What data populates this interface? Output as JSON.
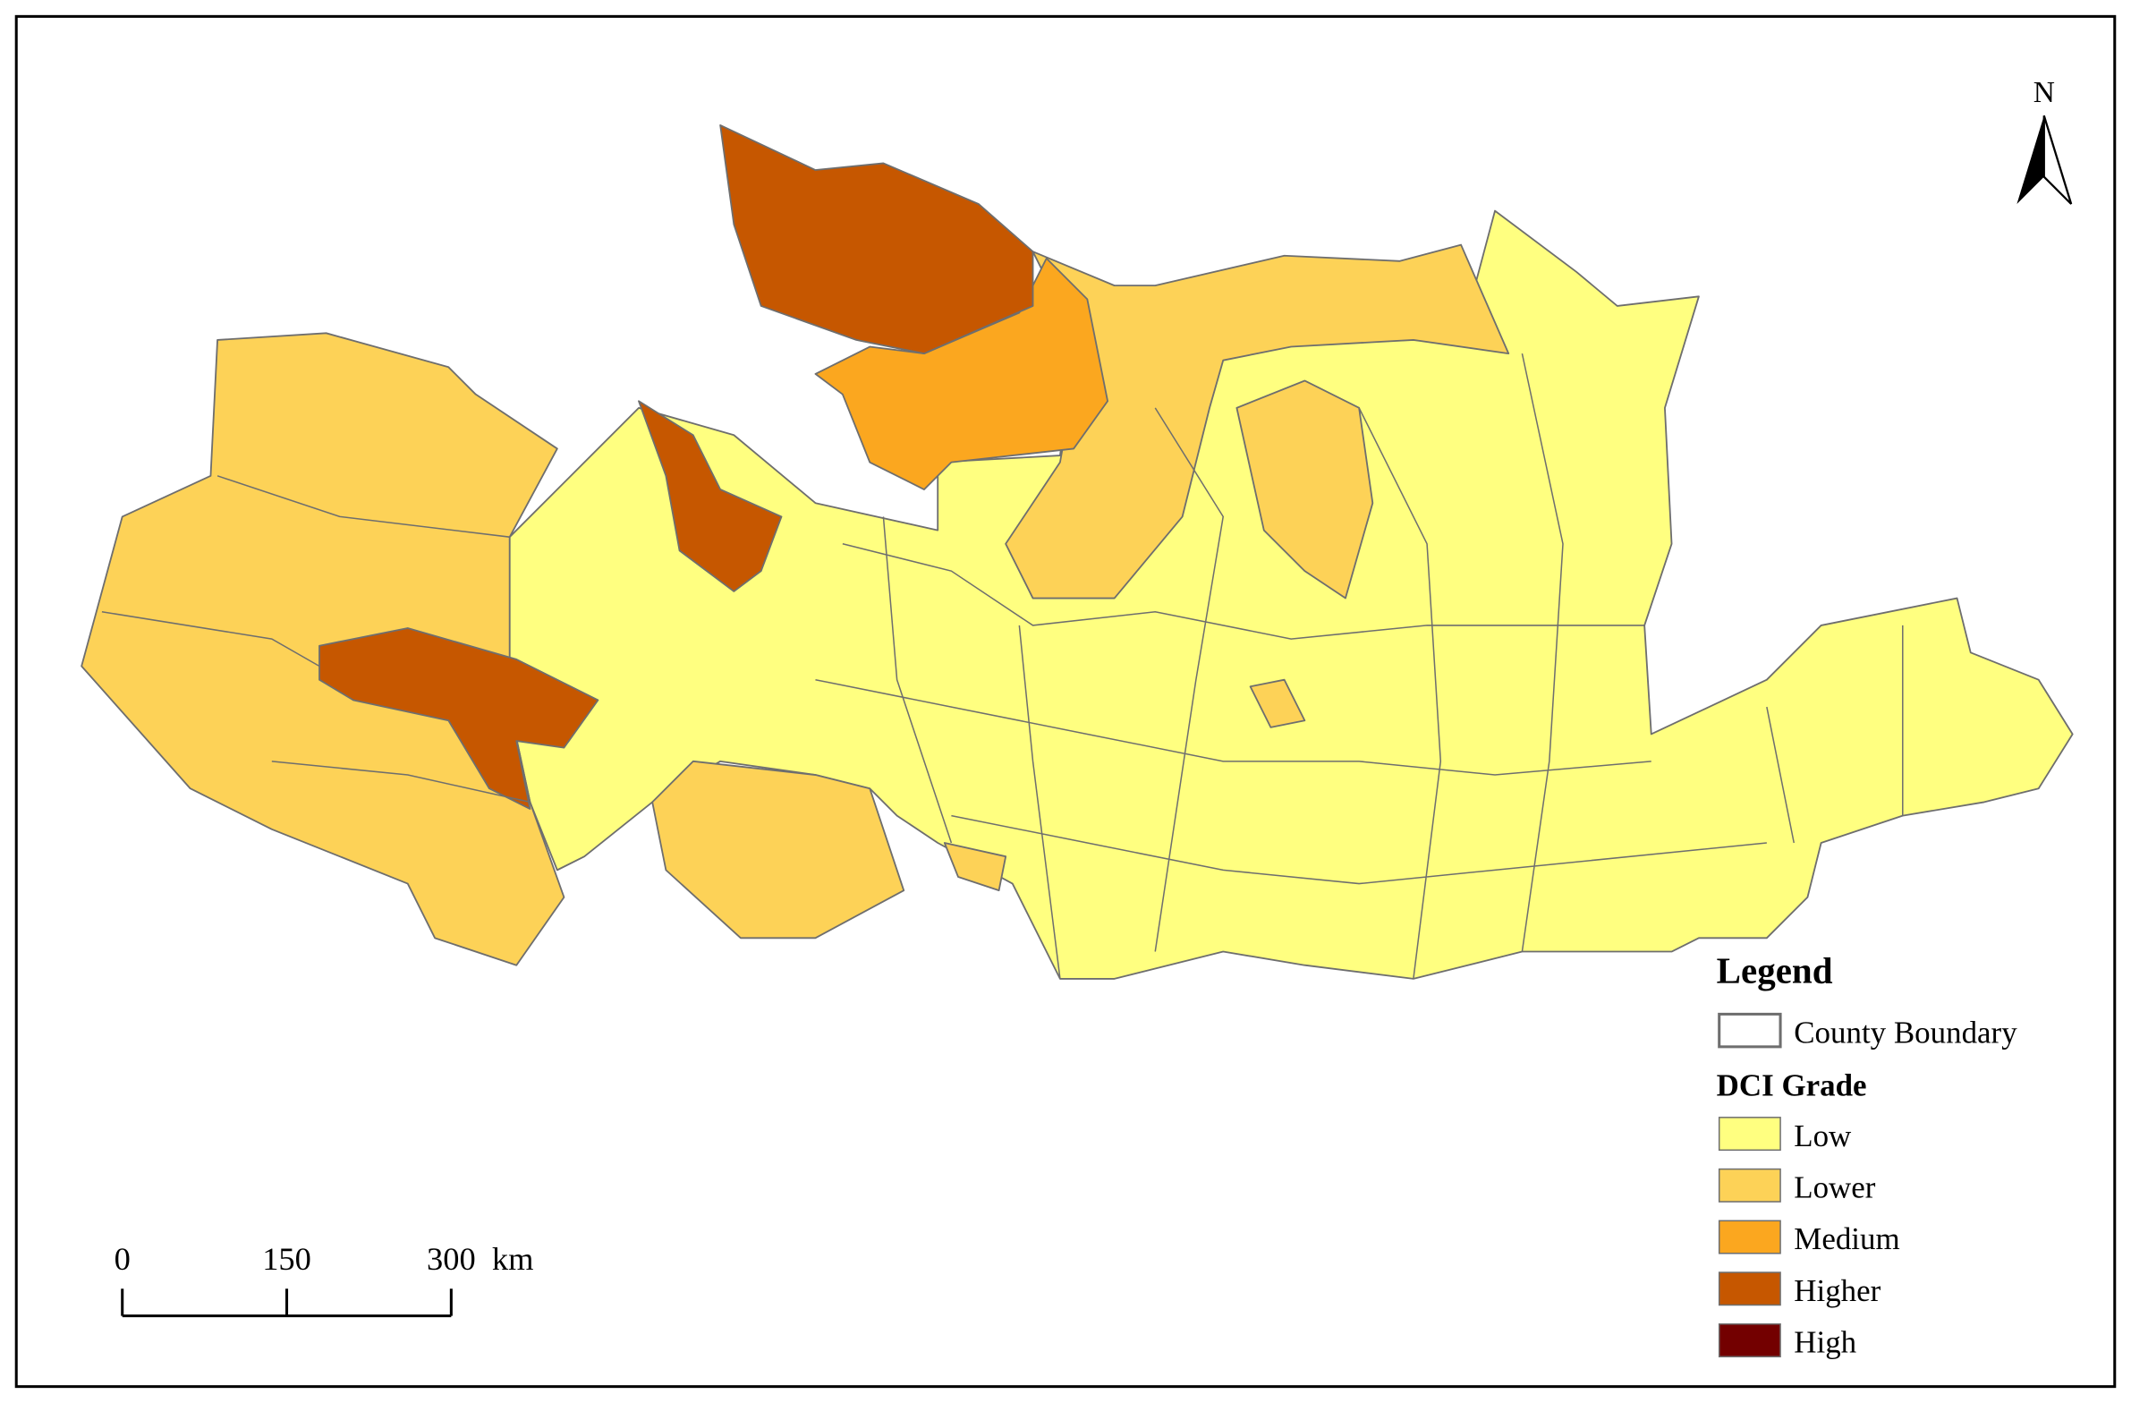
{
  "north": "N",
  "legend": {
    "title": "Legend",
    "boundary": "County Boundary",
    "grade_title": "DCI Grade",
    "grades": [
      {
        "label": "Low",
        "color": "#ffff80"
      },
      {
        "label": "Lower",
        "color": "#fdd257"
      },
      {
        "label": "Medium",
        "color": "#fba71f"
      },
      {
        "label": "Higher",
        "color": "#c65700"
      },
      {
        "label": "High",
        "color": "#730000"
      }
    ]
  },
  "scale_bar": {
    "ticks": [
      0,
      150,
      300
    ],
    "unit": "km"
  }
}
